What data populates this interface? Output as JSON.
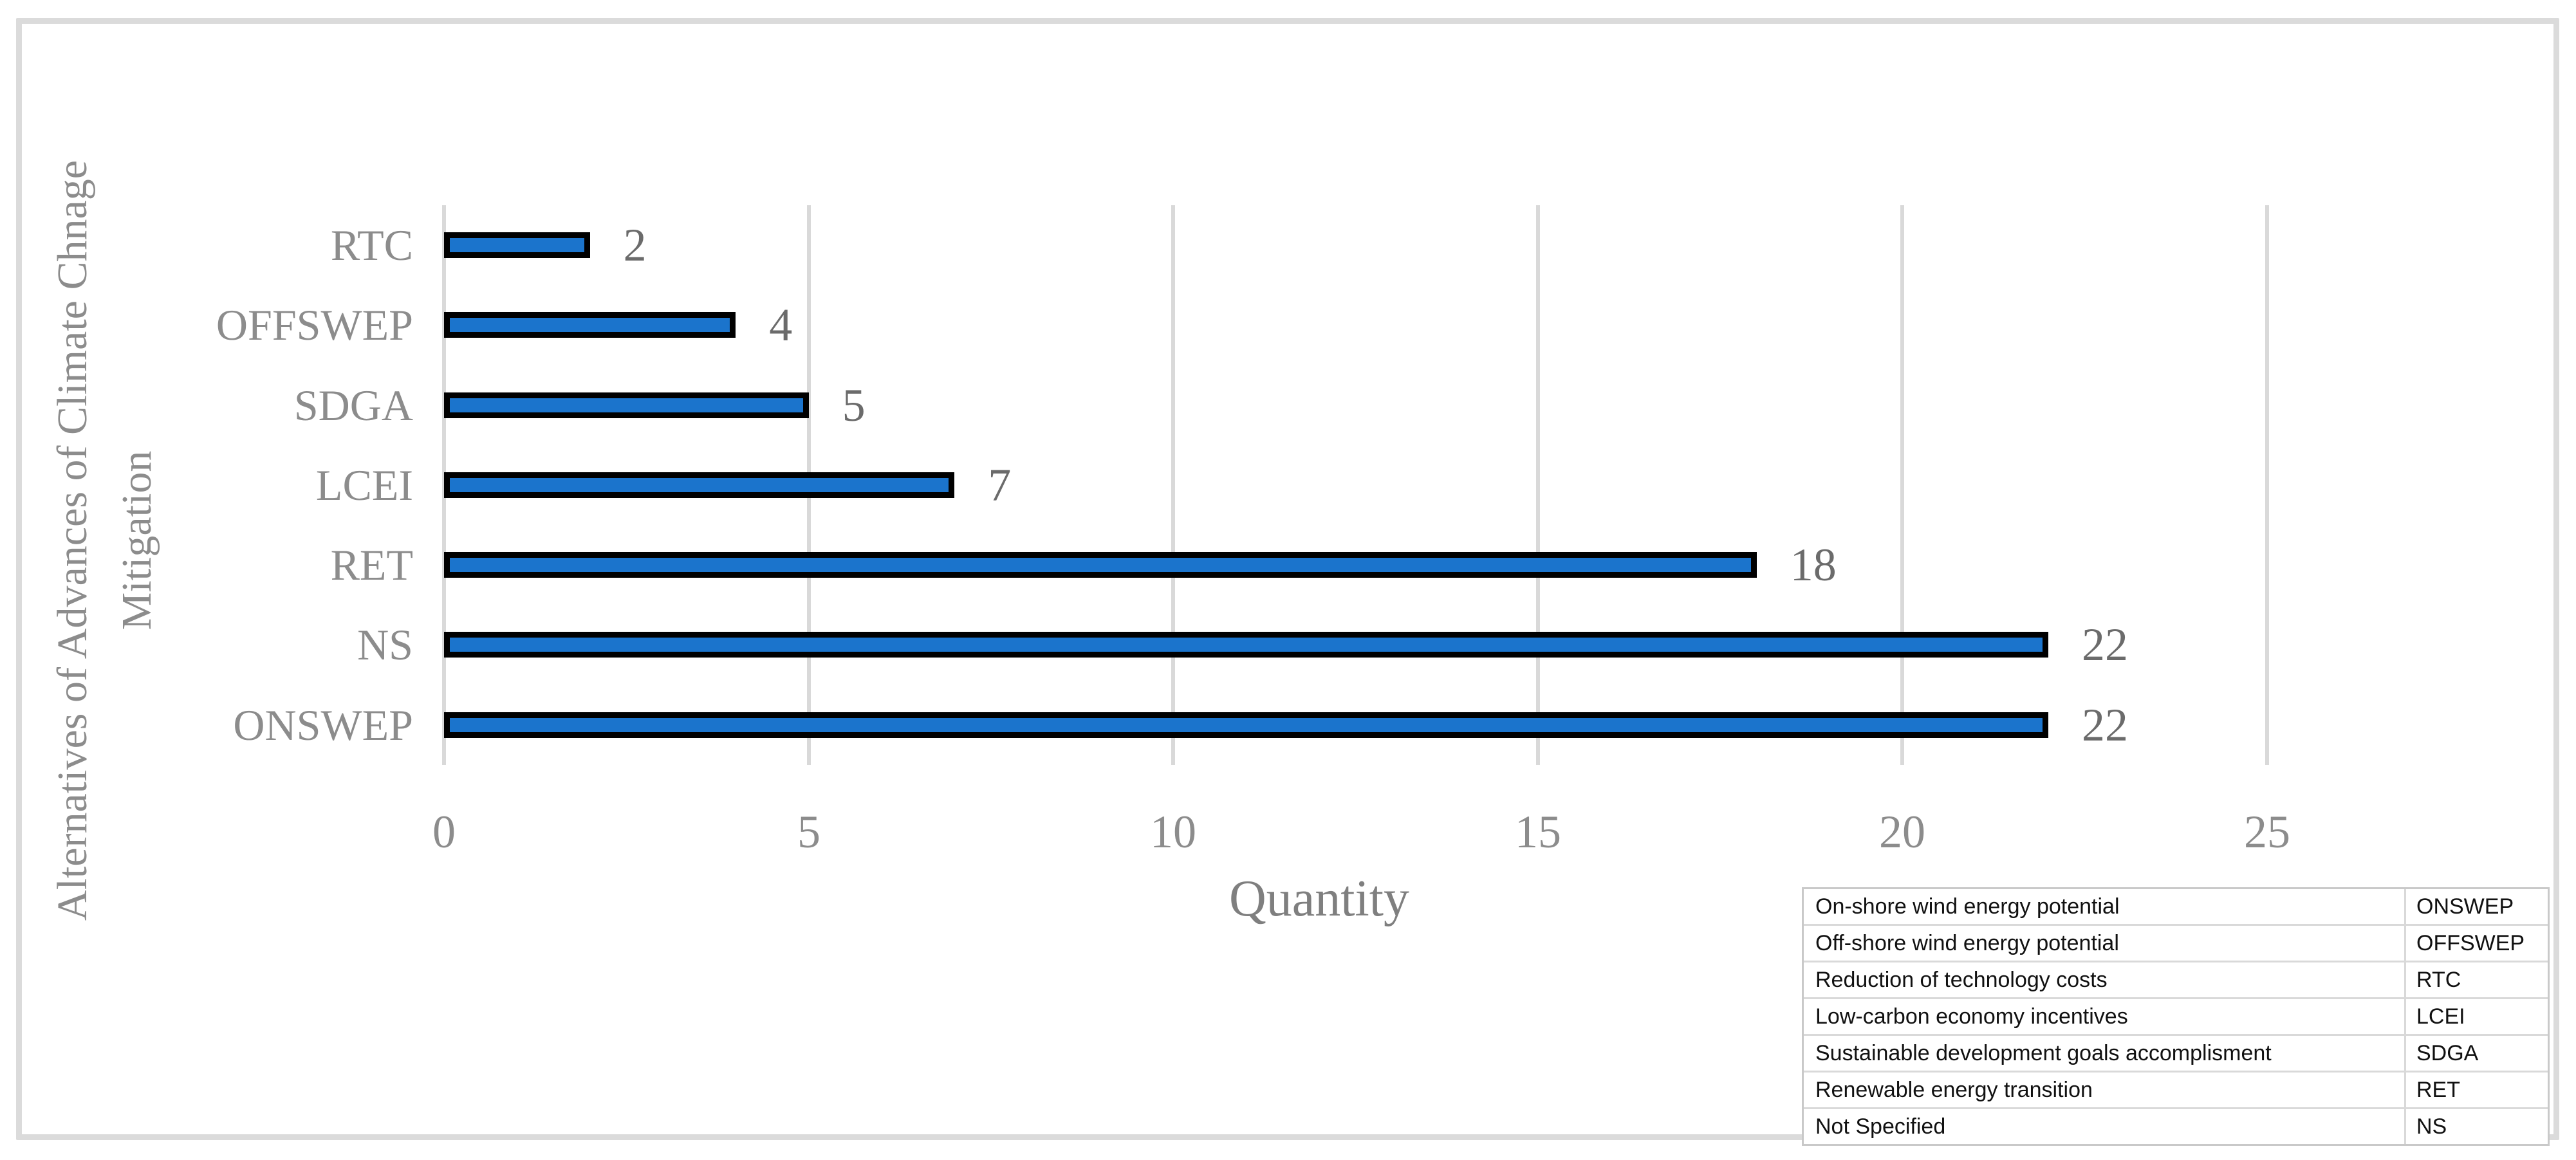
{
  "chart_data": {
    "type": "bar",
    "orientation": "horizontal",
    "xlabel": "Quantity",
    "ylabel_line1": "Alternatives of Advances of Climate Chnage",
    "ylabel_line2": "Mitigation",
    "categories": [
      "RTC",
      "OFFSWEP",
      "SDGA",
      "LCEI",
      "RET",
      "NS",
      "ONSWEP"
    ],
    "values": [
      2,
      4,
      5,
      7,
      18,
      22,
      22
    ],
    "xlim": [
      0,
      25
    ],
    "x_ticks": [
      "0",
      "5",
      "10",
      "15",
      "20",
      "25"
    ],
    "grid": true,
    "legend_position": "bottom-right-table",
    "bar_fill": "#1B74CC",
    "bar_border": "#000000"
  },
  "legend_table": {
    "rows": [
      {
        "name": "On-shore wind energy potential",
        "abbr": "ONSWEP"
      },
      {
        "name": "Off-shore wind energy potential",
        "abbr": "OFFSWEP"
      },
      {
        "name": "Reduction of technology costs",
        "abbr": "RTC"
      },
      {
        "name": "Low-carbon economy incentives",
        "abbr": "LCEI"
      },
      {
        "name": "Sustainable development goals accomplisment",
        "abbr": "SDGA"
      },
      {
        "name": "Renewable energy transition",
        "abbr": "RET"
      },
      {
        "name": "Not Specified",
        "abbr": "NS"
      }
    ]
  },
  "colors": {
    "bar_fill": "#1B74CC",
    "bar_border": "#000000",
    "gridline": "#D9D9D9",
    "frame": "#DBDBDB",
    "axis_text": "#8C8C8C",
    "data_label_text": "#6B6B6B",
    "table_text": "#111111"
  }
}
